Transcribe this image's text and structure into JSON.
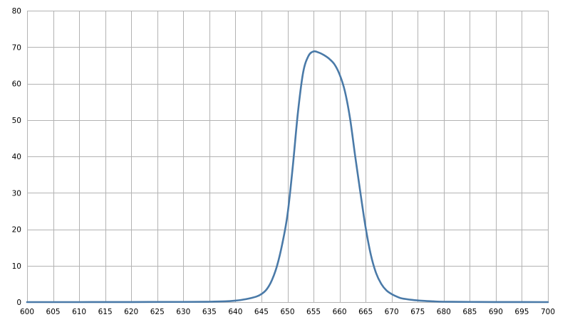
{
  "chart_data": {
    "type": "line",
    "title": "",
    "xlabel": "",
    "ylabel": "",
    "xlim": [
      600,
      700
    ],
    "ylim": [
      0,
      80
    ],
    "x_ticks": [
      600,
      605,
      610,
      615,
      620,
      625,
      630,
      635,
      640,
      645,
      650,
      655,
      660,
      665,
      670,
      675,
      680,
      685,
      690,
      695,
      700
    ],
    "y_ticks": [
      0,
      10,
      20,
      30,
      40,
      50,
      60,
      70,
      80
    ],
    "grid": true,
    "legend": "none",
    "series": [
      {
        "color": "#4a7aa8",
        "x": [
          600,
          610,
          620,
          630,
          635,
          638,
          640,
          642,
          644,
          645,
          646,
          647,
          648,
          649,
          650,
          651,
          652,
          653,
          654,
          655,
          656,
          657,
          658,
          659,
          660,
          661,
          662,
          663,
          664,
          665,
          666,
          667,
          668,
          669,
          670,
          671,
          672,
          674,
          676,
          678,
          680,
          685,
          690,
          700
        ],
        "y": [
          0,
          0,
          0.02,
          0.05,
          0.1,
          0.2,
          0.4,
          0.8,
          1.5,
          2.2,
          3.5,
          6,
          10,
          16,
          24,
          37,
          52,
          63,
          67.5,
          68.8,
          68.5,
          67.8,
          66.8,
          65.3,
          62.5,
          58,
          50.5,
          40,
          30,
          20.5,
          13,
          8,
          5,
          3.2,
          2.2,
          1.5,
          1,
          0.6,
          0.35,
          0.2,
          0.1,
          0.05,
          0.02,
          0
        ]
      }
    ]
  }
}
